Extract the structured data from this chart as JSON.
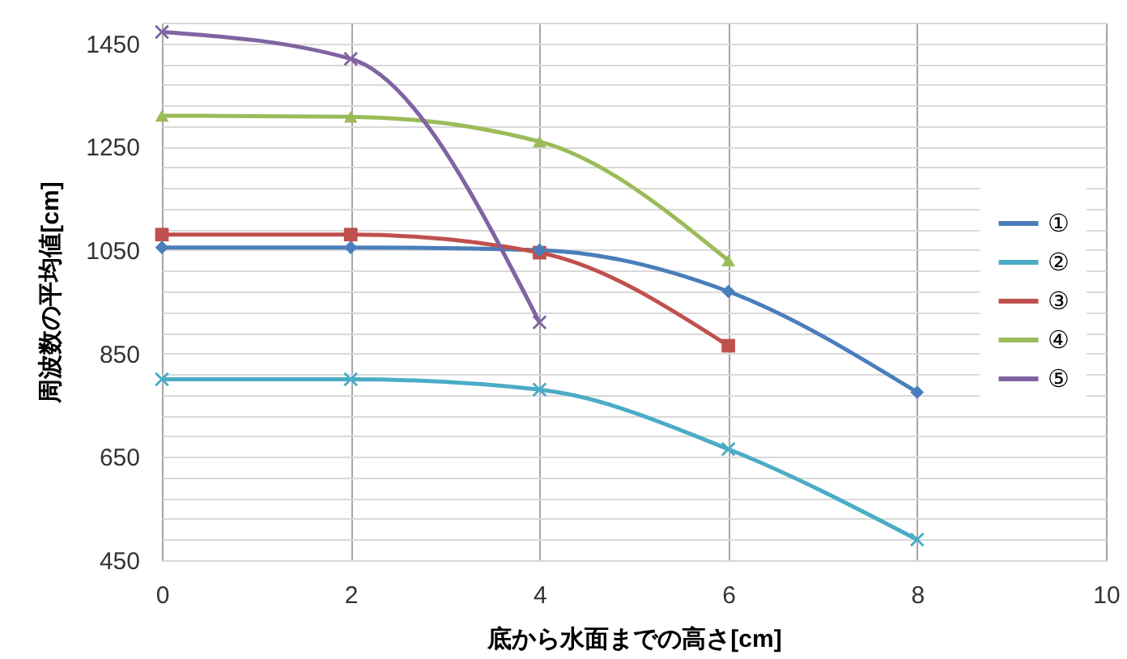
{
  "chart_data": {
    "type": "line",
    "xlabel": "底から水面までの高さ[cm]",
    "ylabel": "周波数の平均値[cm]",
    "x": [
      0,
      2,
      4,
      6,
      8
    ],
    "series": [
      {
        "name": "①",
        "color": "#4a7ebb",
        "marker": "diamond",
        "values": [
          1055,
          1055,
          1050,
          970,
          775
        ]
      },
      {
        "name": "②",
        "color": "#4bacc6",
        "marker": "cross",
        "values": [
          800,
          800,
          780,
          665,
          490
        ]
      },
      {
        "name": "③",
        "color": "#c0504d",
        "marker": "square",
        "values": [
          1080,
          1080,
          1045,
          865,
          null
        ]
      },
      {
        "name": "④",
        "color": "#9bbb59",
        "marker": "triangle",
        "values": [
          1310,
          1308,
          1260,
          1030,
          null
        ]
      },
      {
        "name": "⑤",
        "color": "#8064a2",
        "marker": "cross",
        "values": [
          1472,
          1420,
          910,
          null,
          null
        ]
      }
    ],
    "xlim": [
      0,
      10
    ],
    "xticks": [
      0,
      2,
      4,
      6,
      8,
      10
    ],
    "ylim": [
      450,
      1490
    ],
    "yticks": [
      450,
      {
        "value": 490,
        "label": null
      },
      {
        "value": 530,
        "label": null
      },
      {
        "value": 570,
        "label": null
      },
      {
        "value": 610,
        "label": null
      },
      650,
      {
        "value": 690,
        "label": null
      },
      {
        "value": 730,
        "label": null
      },
      {
        "value": 770,
        "label": null
      },
      {
        "value": 810,
        "label": null
      },
      850,
      {
        "value": 890,
        "label": null
      },
      {
        "value": 930,
        "label": null
      },
      {
        "value": 970,
        "label": null
      },
      {
        "value": 1010,
        "label": null
      },
      1050,
      {
        "value": 1090,
        "label": null
      },
      {
        "value": 1130,
        "label": null
      },
      {
        "value": 1170,
        "label": null
      },
      {
        "value": 1210,
        "label": null
      },
      1250,
      {
        "value": 1290,
        "label": null
      },
      {
        "value": 1330,
        "label": null
      },
      {
        "value": 1370,
        "label": null
      },
      {
        "value": 1410,
        "label": null
      },
      1450,
      {
        "value": 1490,
        "label": null
      }
    ],
    "grid": true,
    "legend": "right",
    "line_style": "solid"
  }
}
